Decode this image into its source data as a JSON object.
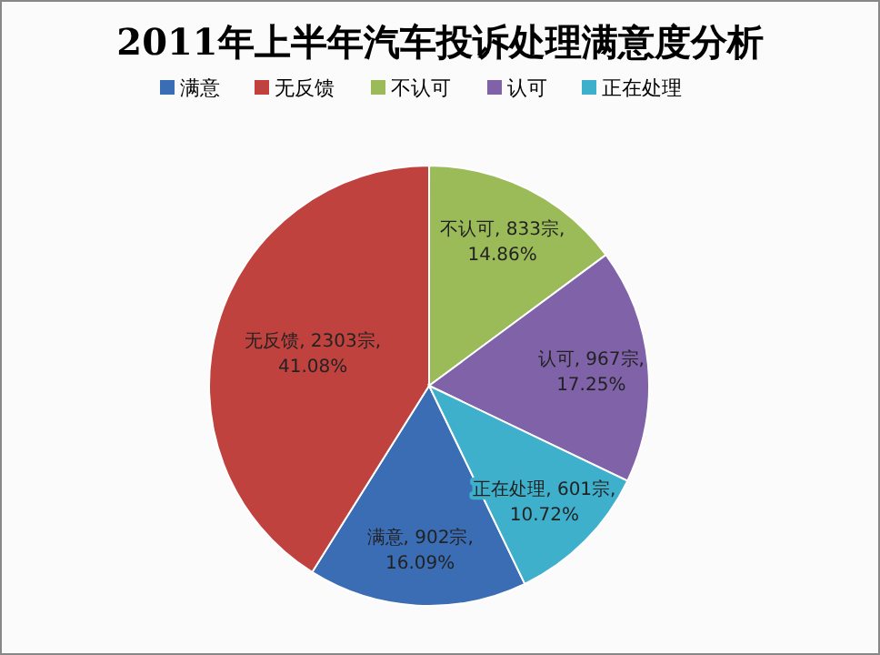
{
  "chart_data": {
    "type": "pie",
    "title": "2011年上半年汽车投诉处理满意度分析",
    "categories": [
      "满意",
      "无反馈",
      "不认可",
      "认可",
      "正在处理"
    ],
    "values": [
      902,
      2303,
      833,
      967,
      601
    ],
    "colors": [
      "#3b6db5",
      "#c0423e",
      "#9bbb59",
      "#7f62a8",
      "#3fb0cc"
    ],
    "value_labels": [
      "满意, 902宗, 16.09%",
      "无反馈, 2303宗, 41.08%",
      "不认可, 833宗, 14.86%",
      "认可, 967宗, 17.25%",
      "正在处理, 601宗, 10.72%"
    ],
    "legend": "top"
  }
}
